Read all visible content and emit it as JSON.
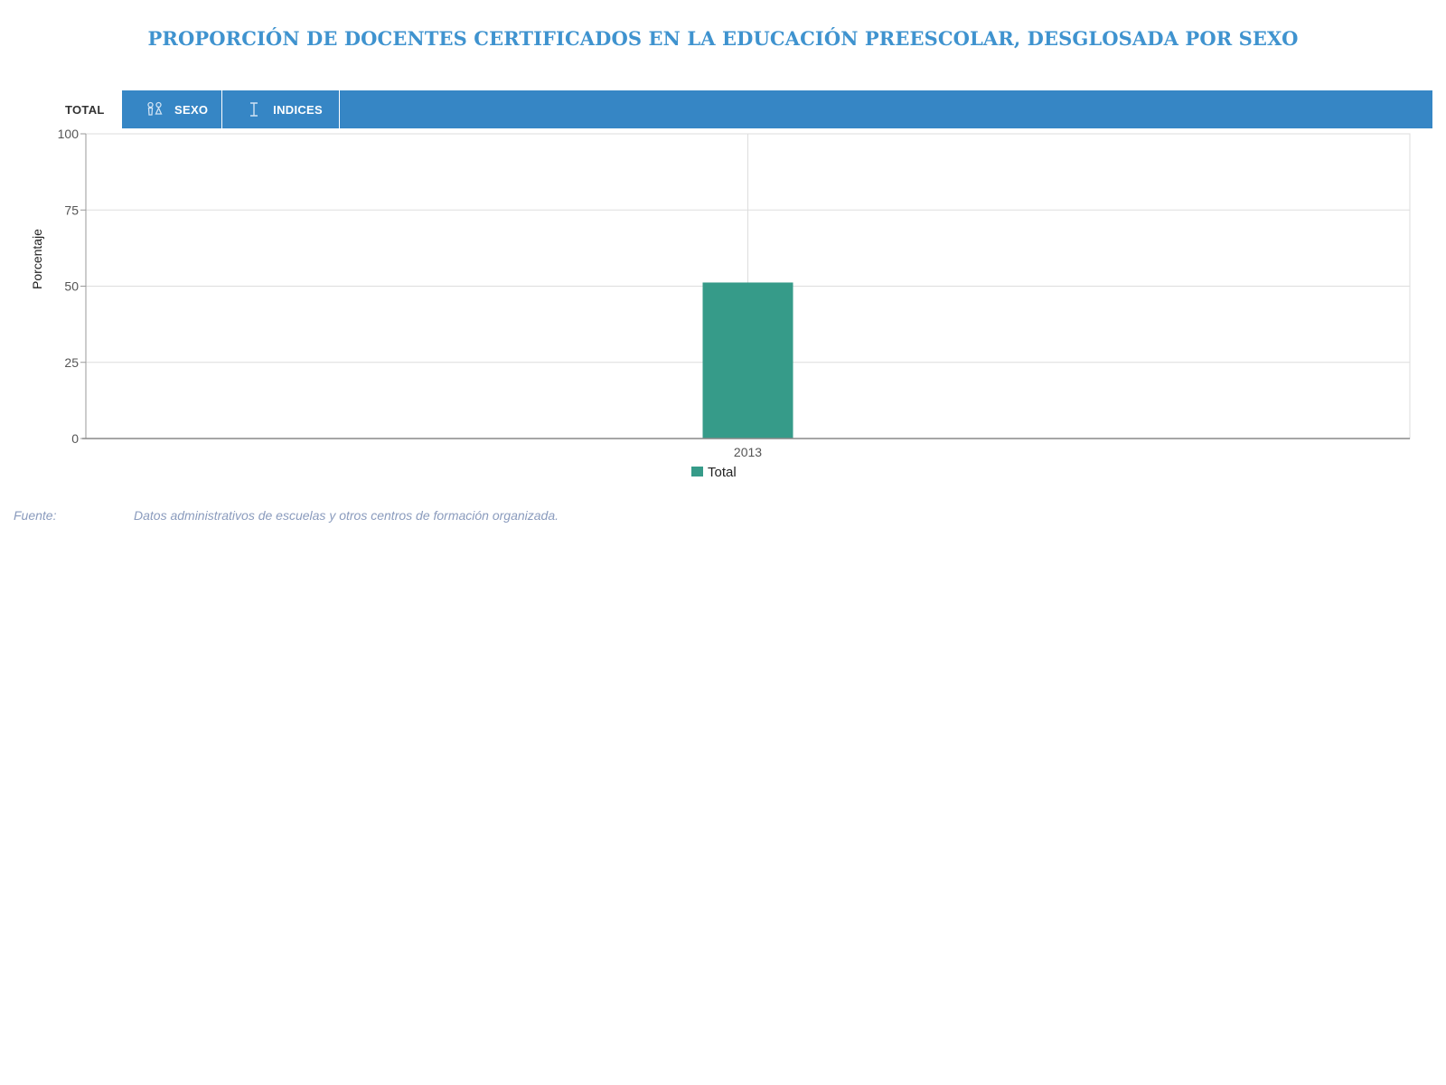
{
  "page": {
    "title": "PROPORCIÓN DE DOCENTES CERTIFICADOS EN LA EDUCACIÓN PREESCOLAR, DESGLOSADA POR SEXO"
  },
  "tabs": [
    {
      "label": "TOTAL",
      "icon": "",
      "active": true
    },
    {
      "label": "SEXO",
      "icon": "gender-icon",
      "active": false
    },
    {
      "label": "INDICES",
      "icon": "index-icon",
      "active": false
    }
  ],
  "chart_data": {
    "type": "bar",
    "categories": [
      "2013"
    ],
    "series": [
      {
        "name": "Total",
        "values": [
          51.2
        ],
        "color": "#369b89"
      }
    ],
    "ylabel": "Porcentaje",
    "xlabel": "",
    "ylim": [
      0,
      100
    ],
    "yticks": [
      "0",
      "25",
      "50",
      "75",
      "100"
    ],
    "grid": true,
    "legend": "bottom-center"
  },
  "source": {
    "label": "Fuente:",
    "text": "Datos administrativos de escuelas y otros centros de formación organizada."
  },
  "colors": {
    "accent": "#3686c5",
    "title": "#3f93cf",
    "bar": "#369b89",
    "source_text": "#8a9bbd"
  }
}
